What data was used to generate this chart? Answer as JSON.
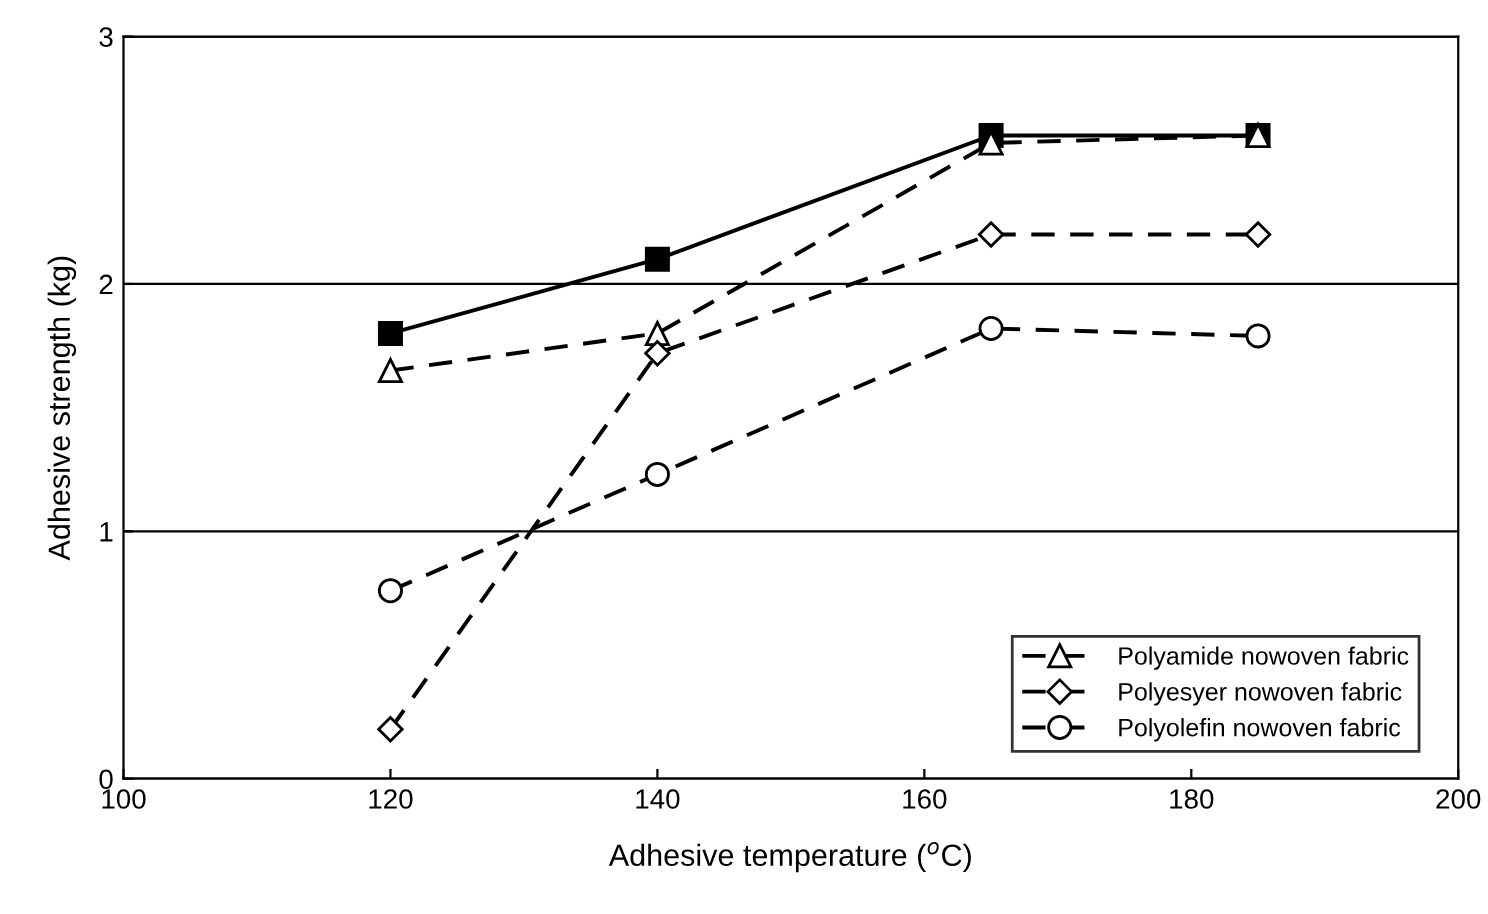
{
  "chart_data": {
    "type": "line",
    "xlabel": "Adhesive temperature ($^{o}$C)",
    "ylabel": "Adhesive strength (kg)",
    "x": [
      120,
      140,
      165,
      185
    ],
    "series": [
      {
        "color": "#000000",
        "marker": "square",
        "line_style": "solid",
        "values": [
          1.8,
          2.1,
          2.6,
          2.6
        ]
      },
      {
        "name": "Polyamide nowoven fabric",
        "color": "#000000",
        "marker": "triangle",
        "line_style": "dashed",
        "values": [
          1.65,
          1.8,
          2.57,
          2.6
        ]
      },
      {
        "name": "Polyesyer nowoven fabric",
        "color": "#000000",
        "marker": "diamond",
        "line_style": "dashed",
        "values": [
          0.2,
          1.72,
          2.2,
          2.2
        ]
      },
      {
        "name": "Polyolefin nowoven fabric",
        "color": "#000000",
        "marker": "circle",
        "line_style": "dashed",
        "values": [
          0.76,
          1.23,
          1.82,
          1.79
        ]
      }
    ],
    "xlim": [
      100,
      200
    ],
    "xticks": [
      100,
      120,
      140,
      160,
      180,
      200
    ],
    "ylim": [
      0,
      3
    ],
    "yticks": [
      0,
      1,
      2,
      3
    ],
    "grid": "y",
    "legend": "bottom right"
  }
}
